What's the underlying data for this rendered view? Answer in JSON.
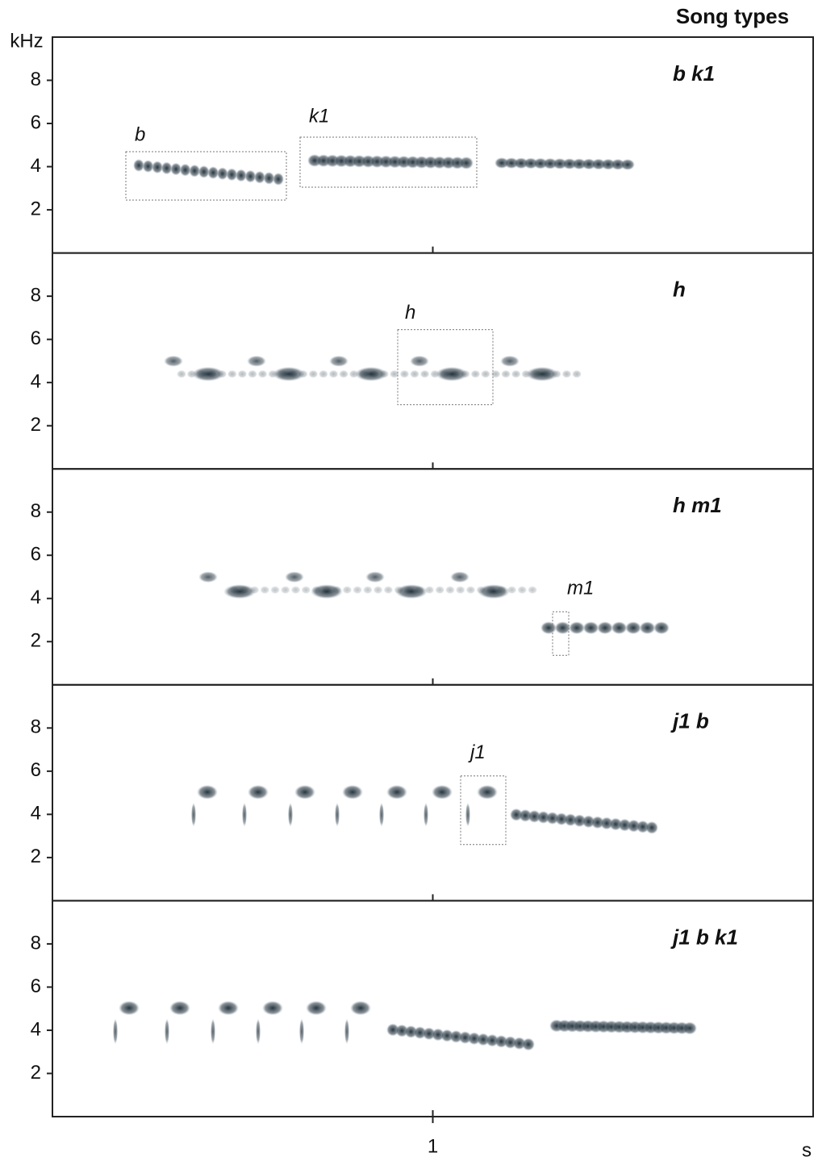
{
  "header": "Song types",
  "chart_data": [
    {
      "type": "spectrogram",
      "title": "b k1",
      "ylabel": "kHz",
      "ylim": [
        0,
        10
      ],
      "yticks": [
        2,
        4,
        6,
        8
      ],
      "xlim": [
        0,
        2
      ],
      "annotations": [
        "b",
        "k1"
      ]
    },
    {
      "type": "spectrogram",
      "title": "h",
      "ylim": [
        0,
        10
      ],
      "yticks": [
        2,
        4,
        6,
        8
      ],
      "xlim": [
        0,
        2
      ],
      "annotations": [
        "h"
      ]
    },
    {
      "type": "spectrogram",
      "title": "h m1",
      "ylim": [
        0,
        10
      ],
      "yticks": [
        2,
        4,
        6,
        8
      ],
      "xlim": [
        0,
        2
      ],
      "annotations": [
        "m1"
      ]
    },
    {
      "type": "spectrogram",
      "title": "j1 b",
      "ylim": [
        0,
        10
      ],
      "yticks": [
        2,
        4,
        6,
        8
      ],
      "xlim": [
        0,
        2
      ],
      "annotations": [
        "j1"
      ]
    },
    {
      "type": "spectrogram",
      "title": "j1 b k1",
      "ylim": [
        0,
        10
      ],
      "yticks": [
        2,
        4,
        6,
        8
      ],
      "xlim": [
        0,
        2
      ],
      "xticks": [
        1
      ],
      "xlabel": "s",
      "annotations": []
    }
  ]
}
